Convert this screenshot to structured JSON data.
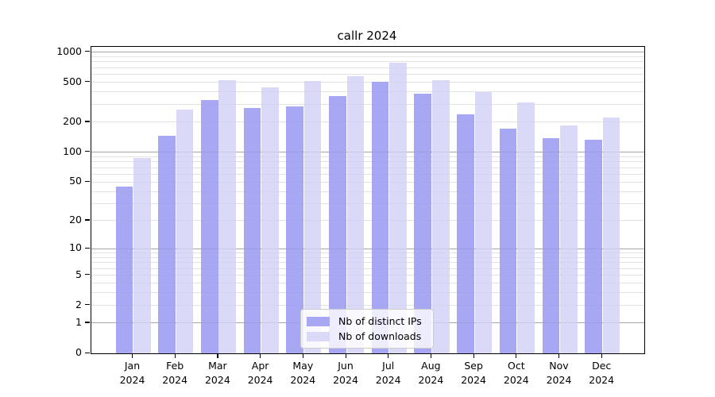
{
  "chart_data": {
    "type": "bar",
    "title": "callr 2024",
    "categories": [
      "Jan",
      "Feb",
      "Mar",
      "Apr",
      "May",
      "Jun",
      "Jul",
      "Aug",
      "Sep",
      "Oct",
      "Nov",
      "Dec"
    ],
    "category_year": "2024",
    "series": [
      {
        "name": "Nb of distinct IPs",
        "color": "#a7a7f3",
        "values": [
          45,
          145,
          335,
          278,
          287,
          362,
          503,
          387,
          240,
          173,
          139,
          134
        ]
      },
      {
        "name": "Nb of downloads",
        "color": "#dadaf8",
        "values": [
          88,
          265,
          530,
          445,
          520,
          576,
          790,
          522,
          400,
          313,
          187,
          221
        ]
      }
    ],
    "x_axis": {
      "label": ""
    },
    "y_axis": {
      "label": "",
      "scale": "log1p",
      "tick_values": [
        0,
        1,
        2,
        5,
        10,
        20,
        50,
        100,
        200,
        500,
        1000
      ],
      "major_grid_values": [
        1,
        10,
        100,
        1000
      ],
      "minor_grid_base": [
        2,
        3,
        4,
        5,
        6,
        7,
        8,
        9
      ],
      "ylim": [
        0,
        1080
      ]
    },
    "legend": {
      "position": "bottom-center"
    },
    "colors": {
      "background": "#ffffff",
      "axis": "#000000",
      "major_grid": "#b0b0b0",
      "minor_grid": "#e9e9e9"
    },
    "grid": "on"
  }
}
